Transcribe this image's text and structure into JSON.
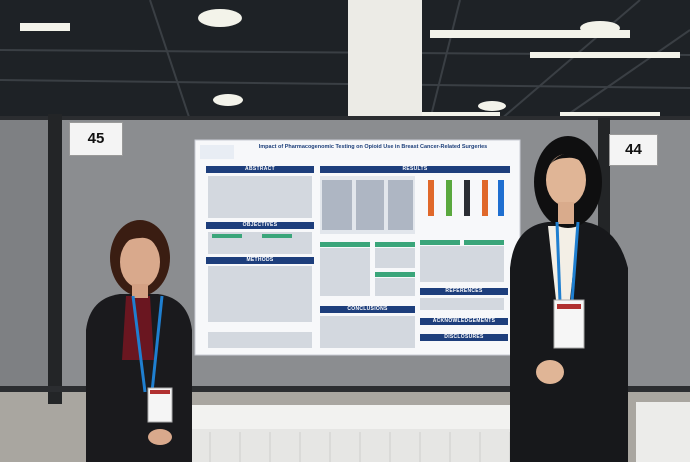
{
  "scene": {
    "booth_left_number": "45",
    "booth_right_number": "44",
    "poster": {
      "title": "Impact of Pharmacogenomic Testing on Opioid Use in Breast Cancer-Related Surgeries",
      "sections": {
        "abstract": "ABSTRACT",
        "objectives": "OBJECTIVES",
        "methods": "METHODS",
        "results": "RESULTS",
        "references": "REFERENCES",
        "conclusions": "CONCLUSIONS",
        "acknowledgements": "ACKNOWLEDGEMENTS",
        "disclosures": "DISCLOSURES"
      }
    },
    "colors": {
      "backdrop": "#1e2226",
      "panel": "#8a8c8f",
      "poster_blue": "#1d3e7c",
      "table_green": "#3aa57a",
      "lanyard": "#1f7fd0"
    }
  }
}
